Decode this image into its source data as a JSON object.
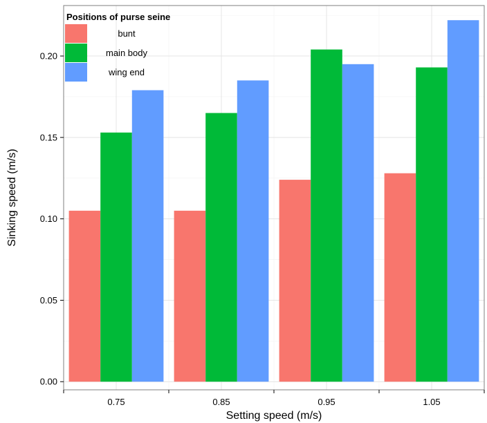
{
  "chart_data": {
    "type": "bar",
    "xlabel": "Setting speed (m/s)",
    "ylabel": "Sinking speed (m/s)",
    "categories": [
      "0.75",
      "0.85",
      "0.95",
      "1.05"
    ],
    "y_ticks": [
      "0.00",
      "0.05",
      "0.10",
      "0.15",
      "0.20"
    ],
    "ylim": [
      -0.005,
      0.231
    ],
    "grid": true,
    "legend": {
      "title": "Positions of purse seine",
      "placement": "top-left"
    },
    "series": [
      {
        "name": "bunt",
        "color": "#F8766D",
        "values": [
          0.105,
          0.105,
          0.124,
          0.128
        ]
      },
      {
        "name": "main body",
        "color": "#00BA38",
        "values": [
          0.153,
          0.165,
          0.204,
          0.193
        ]
      },
      {
        "name": "wing end",
        "color": "#619CFF",
        "values": [
          0.179,
          0.185,
          0.195,
          0.222
        ]
      }
    ]
  }
}
